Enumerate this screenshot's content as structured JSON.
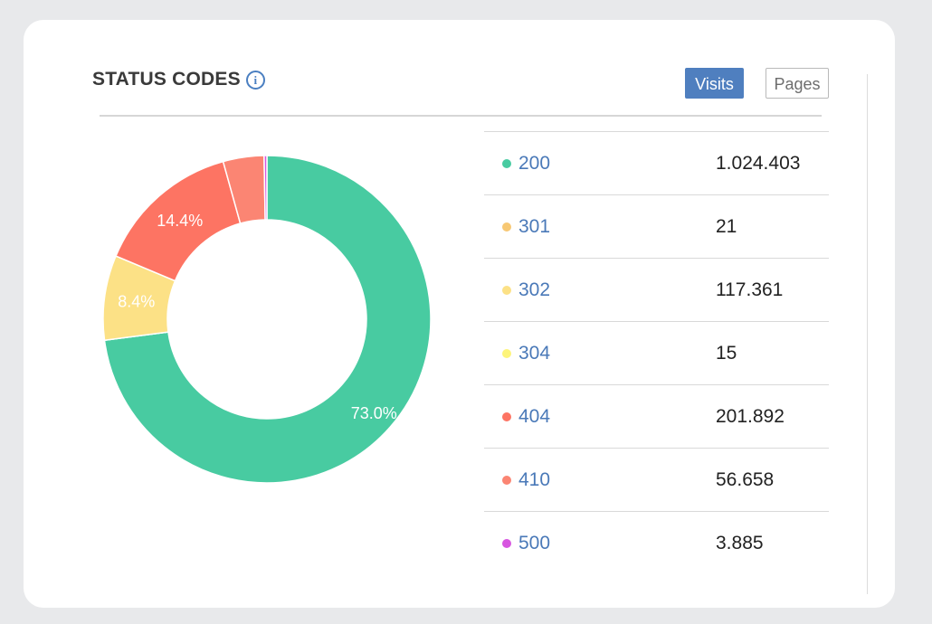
{
  "header": {
    "title": "STATUS CODES",
    "info_icon": "info-icon"
  },
  "toggle": {
    "visits_label": "Visits",
    "pages_label": "Pages",
    "active": "Visits"
  },
  "chart_data": {
    "type": "pie",
    "donut": true,
    "slices": [
      {
        "code": "200",
        "value": 1024403,
        "color": "#48cba1",
        "label": "73.0%"
      },
      {
        "code": "301",
        "value": 21,
        "color": "#f7c873",
        "label": ""
      },
      {
        "code": "302",
        "value": 117361,
        "color": "#fce186",
        "label": "8.4%"
      },
      {
        "code": "304",
        "value": 15,
        "color": "#fdf47a",
        "label": ""
      },
      {
        "code": "404",
        "value": 201892,
        "color": "#fd7463",
        "label": "14.4%"
      },
      {
        "code": "410",
        "value": 56658,
        "color": "#fb8573",
        "label": ""
      },
      {
        "code": "500",
        "value": 3885,
        "color": "#d756e0",
        "label": ""
      }
    ]
  },
  "legend": {
    "rows": [
      {
        "code": "200",
        "value": "1.024.403",
        "color": "#48cba1"
      },
      {
        "code": "301",
        "value": "21",
        "color": "#f7c873"
      },
      {
        "code": "302",
        "value": "117.361",
        "color": "#fce186"
      },
      {
        "code": "304",
        "value": "15",
        "color": "#fdf47a"
      },
      {
        "code": "404",
        "value": "201.892",
        "color": "#fd7463"
      },
      {
        "code": "410",
        "value": "56.658",
        "color": "#fb8573"
      },
      {
        "code": "500",
        "value": "3.885",
        "color": "#d756e0"
      }
    ]
  }
}
